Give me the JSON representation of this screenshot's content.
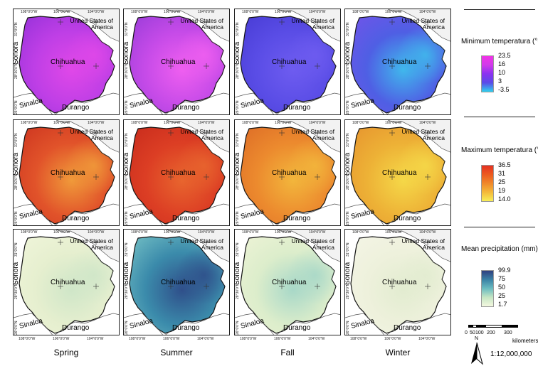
{
  "seasons": [
    "Spring",
    "Summer",
    "Fall",
    "Winter"
  ],
  "map_labels": {
    "chihuahua": "Chihuahua",
    "usa": [
      "United States of",
      "America"
    ],
    "sonora": "Sonora",
    "sinaloa": "Sinaloa",
    "durango": "Durango"
  },
  "coords": {
    "lon": [
      "108°0'0\"W",
      "106°0'0\"W",
      "104°0'0\"W"
    ],
    "lat": [
      "31°0'0\"N",
      "28°30'0\"N",
      "26°0'0\"N"
    ]
  },
  "rows": [
    {
      "variable": "min_temp",
      "legend_title": "Minimum temperatura (°C)",
      "legend_ticks": [
        "23.5",
        "16",
        "10",
        "3",
        "-3.5"
      ],
      "ramp_colors": [
        "#f033e6",
        "#d13aea",
        "#8a32f0",
        "#5a4be8",
        "#2fd2ee"
      ],
      "panel_palettes": [
        {
          "base": "#bf3fe6",
          "accent": "#e048e8",
          "shade": "#9e34dc"
        },
        {
          "base": "#c64be8",
          "accent": "#ef5ff0",
          "shade": "#a23fdc"
        },
        {
          "base": "#5a4de6",
          "accent": "#6e5cf0",
          "shade": "#4b3fd8"
        },
        {
          "base": "#4f5fe4",
          "accent": "#40b8ec",
          "shade": "#6a56e8"
        }
      ]
    },
    {
      "variable": "max_temp",
      "legend_title": "Maximum temperatura (°C)",
      "legend_ticks": [
        "36.5",
        "31",
        "25",
        "19",
        "14.0"
      ],
      "ramp_colors": [
        "#e43121",
        "#ec5a1f",
        "#f0882a",
        "#f4b93a",
        "#f8ee57"
      ],
      "panel_palettes": [
        {
          "base": "#e1532a",
          "accent": "#f09a3a",
          "shade": "#d13b22"
        },
        {
          "base": "#dc3e24",
          "accent": "#e8652e",
          "shade": "#cc2f1e"
        },
        {
          "base": "#ec8a2e",
          "accent": "#f2b63c",
          "shade": "#e07228"
        },
        {
          "base": "#edb136",
          "accent": "#f5d848",
          "shade": "#e89a30"
        }
      ]
    },
    {
      "variable": "precip",
      "legend_title": "Mean precipitation (mm)",
      "legend_ticks": [
        "99.9",
        "75",
        "50",
        "25",
        "1.7"
      ],
      "ramp_colors": [
        "#2f3f7f",
        "#3a82a6",
        "#6bbcc0",
        "#c6e6c4",
        "#f4f8e0"
      ],
      "panel_palettes": [
        {
          "base": "#e6efcf",
          "accent": "#cfe6c8",
          "shade": "#eef4d8"
        },
        {
          "base": "#3b8bab",
          "accent": "#2f4f8a",
          "shade": "#69b6c0"
        },
        {
          "base": "#dcedcb",
          "accent": "#a8d8c8",
          "shade": "#eaf2d4"
        },
        {
          "base": "#eef1dc",
          "accent": "#e2ecd0",
          "shade": "#f3f4e4"
        }
      ]
    }
  ],
  "scale": {
    "ticks": [
      "0",
      "50",
      "100",
      "200",
      "300"
    ],
    "unit": "kilometers",
    "ratio": "1:12,000,000",
    "north": "N"
  }
}
